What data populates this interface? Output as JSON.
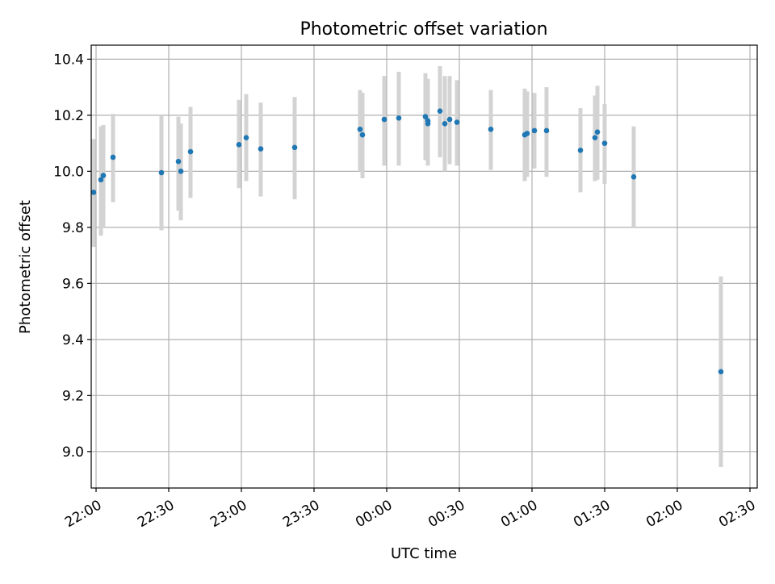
{
  "chart_data": {
    "type": "scatter",
    "title": "Photometric offset variation",
    "xlabel": "UTC time",
    "ylabel": "Photometric offset",
    "x_axis": {
      "kind": "time",
      "domain": [
        "21:58",
        "02:33"
      ],
      "ticks": [
        {
          "time": "22:00",
          "label": "22:00"
        },
        {
          "time": "22:30",
          "label": "22:30"
        },
        {
          "time": "23:00",
          "label": "23:00"
        },
        {
          "time": "23:30",
          "label": "23:30"
        },
        {
          "time": "00:00",
          "label": "00:00"
        },
        {
          "time": "00:30",
          "label": "00:30"
        },
        {
          "time": "01:00",
          "label": "01:00"
        },
        {
          "time": "01:30",
          "label": "01:30"
        },
        {
          "time": "02:00",
          "label": "02:00"
        },
        {
          "time": "02:30",
          "label": "02:30"
        }
      ]
    },
    "y_axis": {
      "ylim": [
        8.87,
        10.45
      ],
      "ticks": [
        9.0,
        9.2,
        9.4,
        9.6,
        9.8,
        10.0,
        10.2,
        10.4
      ],
      "tick_labels": [
        "9.0",
        "9.2",
        "9.4",
        "9.6",
        "9.8",
        "10.0",
        "10.2",
        "10.4"
      ]
    },
    "grid": true,
    "colors": {
      "point": "#1f77b4",
      "errorbar": "#d3d3d3",
      "grid": "#b0b0b0"
    },
    "points": [
      {
        "time": "21:59",
        "y": 9.925,
        "err_low": 9.73,
        "err_high": 10.115
      },
      {
        "time": "22:02",
        "y": 9.97,
        "err_low": 9.77,
        "err_high": 10.16
      },
      {
        "time": "22:03",
        "y": 9.985,
        "err_low": 9.8,
        "err_high": 10.165
      },
      {
        "time": "22:07",
        "y": 10.05,
        "err_low": 9.89,
        "err_high": 10.205
      },
      {
        "time": "22:27",
        "y": 9.995,
        "err_low": 9.79,
        "err_high": 10.2
      },
      {
        "time": "22:34",
        "y": 10.035,
        "err_low": 9.86,
        "err_high": 10.195
      },
      {
        "time": "22:35",
        "y": 10.0,
        "err_low": 9.825,
        "err_high": 10.17
      },
      {
        "time": "22:39",
        "y": 10.07,
        "err_low": 9.905,
        "err_high": 10.23
      },
      {
        "time": "22:59",
        "y": 10.095,
        "err_low": 9.94,
        "err_high": 10.255
      },
      {
        "time": "23:02",
        "y": 10.12,
        "err_low": 9.965,
        "err_high": 10.275
      },
      {
        "time": "23:08",
        "y": 10.08,
        "err_low": 9.91,
        "err_high": 10.245
      },
      {
        "time": "23:22",
        "y": 10.085,
        "err_low": 9.9,
        "err_high": 10.265
      },
      {
        "time": "23:49",
        "y": 10.15,
        "err_low": 10.0,
        "err_high": 10.29
      },
      {
        "time": "23:50",
        "y": 10.13,
        "err_low": 9.975,
        "err_high": 10.28
      },
      {
        "time": "23:59",
        "y": 10.185,
        "err_low": 10.02,
        "err_high": 10.34
      },
      {
        "time": "00:05",
        "y": 10.19,
        "err_low": 10.02,
        "err_high": 10.355
      },
      {
        "time": "00:16",
        "y": 10.195,
        "err_low": 10.04,
        "err_high": 10.35
      },
      {
        "time": "00:17",
        "y": 10.18,
        "err_low": 10.03,
        "err_high": 10.33
      },
      {
        "time": "00:17",
        "y": 10.17,
        "err_low": 10.02,
        "err_high": 10.32
      },
      {
        "time": "00:22",
        "y": 10.215,
        "err_low": 10.05,
        "err_high": 10.375
      },
      {
        "time": "00:24",
        "y": 10.17,
        "err_low": 10.0,
        "err_high": 10.34
      },
      {
        "time": "00:26",
        "y": 10.185,
        "err_low": 10.025,
        "err_high": 10.34
      },
      {
        "time": "00:29",
        "y": 10.175,
        "err_low": 10.02,
        "err_high": 10.325
      },
      {
        "time": "00:43",
        "y": 10.15,
        "err_low": 10.005,
        "err_high": 10.29
      },
      {
        "time": "00:57",
        "y": 10.13,
        "err_low": 9.965,
        "err_high": 10.295
      },
      {
        "time": "00:58",
        "y": 10.135,
        "err_low": 9.98,
        "err_high": 10.285
      },
      {
        "time": "01:01",
        "y": 10.145,
        "err_low": 10.01,
        "err_high": 10.28
      },
      {
        "time": "01:06",
        "y": 10.145,
        "err_low": 9.98,
        "err_high": 10.3
      },
      {
        "time": "01:20",
        "y": 10.075,
        "err_low": 9.925,
        "err_high": 10.225
      },
      {
        "time": "01:26",
        "y": 10.12,
        "err_low": 9.965,
        "err_high": 10.27
      },
      {
        "time": "01:27",
        "y": 10.14,
        "err_low": 9.97,
        "err_high": 10.305
      },
      {
        "time": "01:30",
        "y": 10.1,
        "err_low": 9.955,
        "err_high": 10.24
      },
      {
        "time": "01:42",
        "y": 9.98,
        "err_low": 9.8,
        "err_high": 10.16
      },
      {
        "time": "02:18",
        "y": 9.285,
        "err_low": 8.945,
        "err_high": 9.625
      }
    ]
  }
}
